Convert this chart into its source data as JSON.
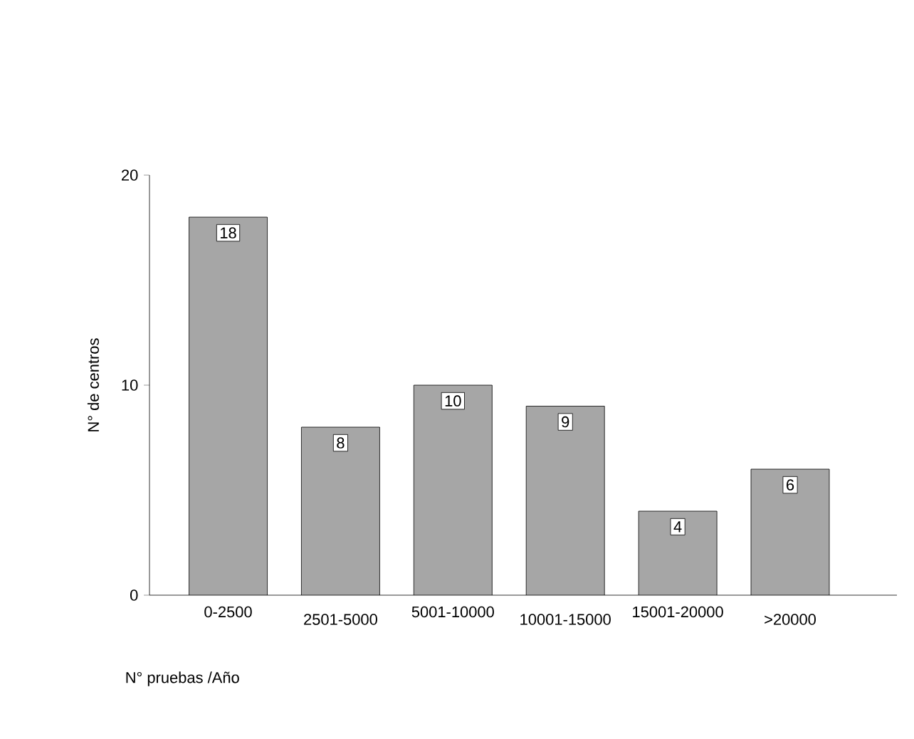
{
  "chart_data": {
    "type": "bar",
    "xlabel": "N° pruebas /Año",
    "ylabel": "N° de centros",
    "categories": [
      "0-2500",
      "2501-5000",
      "5001-10000",
      "10001-15000",
      "15001-20000",
      ">20000"
    ],
    "values": [
      18,
      8,
      10,
      9,
      4,
      6
    ],
    "color": "#a6a6a6",
    "ylim": [
      0,
      20
    ],
    "yticks": [
      0,
      10,
      20
    ],
    "data_labels": true
  }
}
